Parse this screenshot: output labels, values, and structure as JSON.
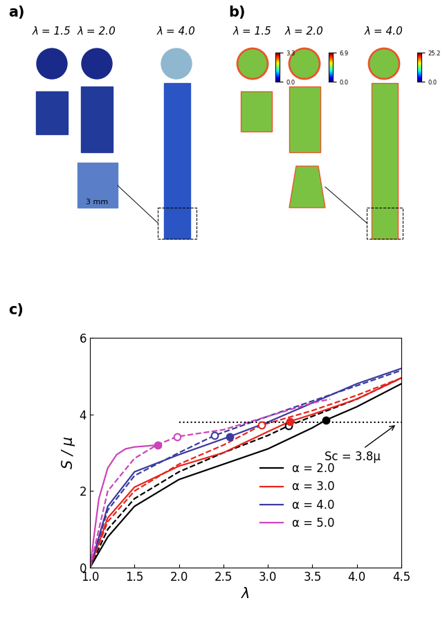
{
  "panels": [
    {
      "label": "a)",
      "stretch_labels": [
        "λ = 1.5",
        "λ = 2.0",
        "λ = 4.0"
      ],
      "scale_bar": "3 mm"
    },
    {
      "label": "b)",
      "stretch_labels": [
        "λ = 1.5",
        "λ = 2.0",
        "λ = 4.0"
      ],
      "colorbars": [
        {
          "min": 0.0,
          "max": 3.3
        },
        {
          "min": 0.0,
          "max": 6.9
        },
        {
          "min": 0.0,
          "max": 25.2
        }
      ]
    }
  ],
  "chart_data": {
    "panel_label": "c)",
    "type": "line",
    "x_label": "λ",
    "y_label": "S / μ",
    "xlim": [
      1.0,
      4.5
    ],
    "xticks": [
      1.0,
      1.5,
      2.0,
      2.5,
      3.0,
      3.5,
      4.0,
      4.5
    ],
    "ylim": [
      0,
      6
    ],
    "yticks": [
      0,
      2,
      4,
      6
    ],
    "legend": "lower right",
    "threshold": {
      "value": 3.8,
      "x_start": 2.0,
      "label": "Sc = 3.8μ"
    },
    "series": [
      {
        "name": "α = 2.0",
        "color": "#000000",
        "line_style": "solid",
        "marker": "filled",
        "x": [
          1.0,
          1.2,
          1.5,
          2.0,
          2.5,
          3.0,
          3.5,
          3.65,
          4.0,
          4.5
        ],
        "values": [
          0.0,
          0.8,
          1.6,
          2.3,
          2.7,
          3.1,
          3.65,
          3.85,
          4.2,
          4.8
        ],
        "critical_point": [
          3.65,
          3.85
        ]
      },
      {
        "color": "#000000",
        "line_style": "dashed",
        "marker": "open",
        "x": [
          1.0,
          1.2,
          1.5,
          2.0,
          2.5,
          3.0,
          3.23,
          3.5,
          4.0,
          4.5
        ],
        "values": [
          0.0,
          1.0,
          1.8,
          2.5,
          3.0,
          3.45,
          3.7,
          3.95,
          4.4,
          4.95
        ],
        "critical_point": [
          3.23,
          3.7
        ]
      },
      {
        "name": "α = 3.0",
        "color": "#e8221b",
        "line_style": "solid",
        "marker": "filled",
        "x": [
          1.0,
          1.2,
          1.5,
          2.0,
          2.5,
          3.0,
          3.25,
          3.5,
          4.0,
          4.5
        ],
        "values": [
          0.0,
          1.3,
          2.1,
          2.65,
          3.0,
          3.55,
          3.82,
          4.0,
          4.4,
          4.95
        ],
        "critical_point": [
          3.25,
          3.82
        ]
      },
      {
        "color": "#e8221b",
        "line_style": "dashed",
        "marker": "open",
        "x": [
          1.0,
          1.2,
          1.5,
          2.0,
          2.5,
          2.93,
          3.5,
          4.0,
          4.5
        ],
        "values": [
          0.0,
          1.2,
          2.0,
          2.7,
          3.2,
          3.72,
          4.1,
          4.5,
          4.95
        ],
        "critical_point": [
          2.93,
          3.72
        ]
      },
      {
        "name": "α = 4.0",
        "color": "#3a3aa0",
        "line_style": "solid",
        "marker": "filled",
        "x": [
          1.0,
          1.2,
          1.5,
          2.0,
          2.57,
          3.0,
          3.5,
          4.0,
          4.5
        ],
        "values": [
          0.0,
          1.6,
          2.5,
          2.95,
          3.42,
          3.8,
          4.3,
          4.8,
          5.2
        ],
        "critical_point": [
          2.57,
          3.42
        ]
      },
      {
        "color": "#3a3aa0",
        "line_style": "dashed",
        "marker": "open",
        "x": [
          1.0,
          1.2,
          1.5,
          2.0,
          2.4,
          3.0,
          3.5,
          4.0,
          4.5
        ],
        "values": [
          0.0,
          1.5,
          2.4,
          3.0,
          3.45,
          3.95,
          4.35,
          4.75,
          5.15
        ],
        "critical_point": [
          2.4,
          3.45
        ]
      },
      {
        "name": "α = 5.0",
        "color": "#cc44b8",
        "line_style": "solid",
        "marker": "filled",
        "x": [
          1.0,
          1.1,
          1.2,
          1.3,
          1.4,
          1.5,
          1.76
        ],
        "values": [
          0.0,
          1.8,
          2.6,
          2.95,
          3.1,
          3.15,
          3.2
        ],
        "critical_point": [
          1.76,
          3.2
        ]
      },
      {
        "color": "#cc44b8",
        "line_style": "dashed",
        "marker": "open",
        "x": [
          1.0,
          1.2,
          1.5,
          1.75,
          1.98,
          2.5,
          3.0,
          3.5,
          3.7
        ],
        "values": [
          0.0,
          2.0,
          2.85,
          3.2,
          3.42,
          3.6,
          3.95,
          4.3,
          4.4
        ],
        "critical_point": [
          1.98,
          3.42
        ]
      }
    ]
  }
}
